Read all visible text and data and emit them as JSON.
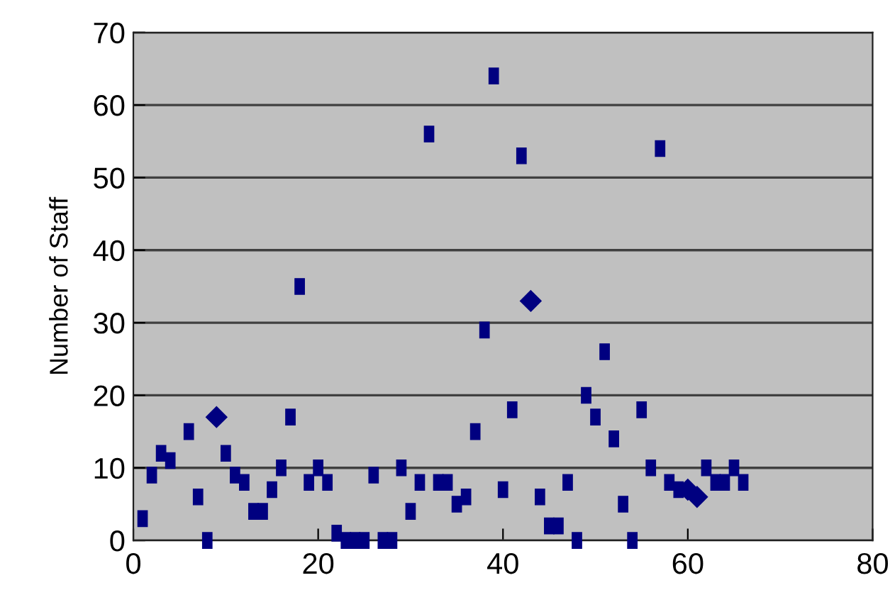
{
  "chart_data": {
    "type": "scatter",
    "ylabel": "Number of Staff",
    "xlim": [
      0,
      80
    ],
    "xticks": [
      0,
      20,
      40,
      60,
      80
    ],
    "ylim": [
      0,
      70
    ],
    "yticks": [
      0,
      10,
      20,
      30,
      40,
      50,
      60,
      70
    ],
    "grid": "y",
    "legend": false,
    "series": [
      {
        "color": "#000080",
        "marker": "square",
        "x": [
          1,
          2,
          3,
          4,
          6,
          7,
          8,
          10,
          11,
          12,
          13,
          14,
          15,
          16,
          17,
          18,
          19,
          20,
          21,
          22,
          23,
          24,
          25,
          26,
          27,
          28,
          29,
          30,
          31,
          32,
          33,
          34,
          35,
          36,
          37,
          38,
          39,
          40,
          41,
          42,
          44,
          45,
          46,
          47,
          48,
          49,
          50,
          51,
          52,
          53,
          54,
          55,
          56,
          57,
          58,
          59,
          62,
          63,
          64,
          65,
          66
        ],
        "values": [
          3,
          9,
          12,
          11,
          15,
          6,
          0,
          12,
          9,
          8,
          4,
          4,
          7,
          10,
          17,
          35,
          8,
          10,
          8,
          1,
          0,
          0,
          0,
          9,
          0,
          0,
          10,
          4,
          8,
          56,
          8,
          8,
          5,
          6,
          15,
          29,
          64,
          7,
          18,
          53,
          6,
          2,
          2,
          8,
          0,
          20,
          17,
          26,
          14,
          5,
          0,
          18,
          10,
          54,
          8,
          7,
          10,
          8,
          8,
          10,
          8
        ]
      },
      {
        "color": "#000080",
        "marker": "diamond",
        "x": [
          9,
          43,
          60,
          61
        ],
        "values": [
          17,
          33,
          7,
          6
        ]
      }
    ]
  }
}
